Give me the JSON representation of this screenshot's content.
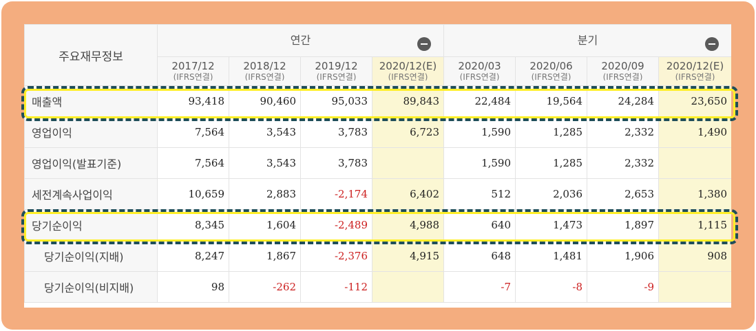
{
  "table": {
    "title": "주요재무정보",
    "groups": {
      "annual": "연간",
      "quarterly": "분기"
    },
    "periods": [
      {
        "label": "2017/12",
        "sub": "(IFRS연결)"
      },
      {
        "label": "2018/12",
        "sub": "(IFRS연결)"
      },
      {
        "label": "2019/12",
        "sub": "(IFRS연결)"
      },
      {
        "label": "2020/12(E)",
        "sub": "(IFRS연결)"
      },
      {
        "label": "2020/03",
        "sub": "(IFRS연결)"
      },
      {
        "label": "2020/06",
        "sub": "(IFRS연결)"
      },
      {
        "label": "2020/09",
        "sub": "(IFRS연결)"
      },
      {
        "label": "2020/12(E)",
        "sub": "(IFRS연결)"
      }
    ],
    "rows": [
      {
        "label": "매출액",
        "values": [
          "93,418",
          "90,460",
          "95,033",
          "89,843",
          "22,484",
          "19,564",
          "24,284",
          "23,650"
        ]
      },
      {
        "label": "영업이익",
        "values": [
          "7,564",
          "3,543",
          "3,783",
          "6,723",
          "1,590",
          "1,285",
          "2,332",
          "1,490"
        ]
      },
      {
        "label": "영업이익(발표기준)",
        "values": [
          "7,564",
          "3,543",
          "3,783",
          "",
          "1,590",
          "1,285",
          "2,332",
          ""
        ]
      },
      {
        "label": "세전계속사업이익",
        "values": [
          "10,659",
          "2,883",
          "-2,174",
          "6,402",
          "512",
          "2,036",
          "2,653",
          "1,380"
        ]
      },
      {
        "label": "당기순이익",
        "values": [
          "8,345",
          "1,604",
          "-2,489",
          "4,988",
          "640",
          "1,473",
          "1,897",
          "1,115"
        ]
      },
      {
        "label": "당기순이익(지배)",
        "values": [
          "8,247",
          "1,867",
          "-2,376",
          "4,915",
          "648",
          "1,481",
          "1,906",
          "908"
        ]
      },
      {
        "label": "당기순이익(비지배)",
        "values": [
          "98",
          "-262",
          "-112",
          "",
          "-7",
          "-8",
          "-9",
          ""
        ]
      }
    ]
  },
  "colors": {
    "frame": "#f4ad7f",
    "estimate_bg": "#fbf7d3",
    "negative": "#cc1f1f",
    "highlight_dash": "#1f4e5a",
    "highlight_glow": "#ffef27"
  }
}
